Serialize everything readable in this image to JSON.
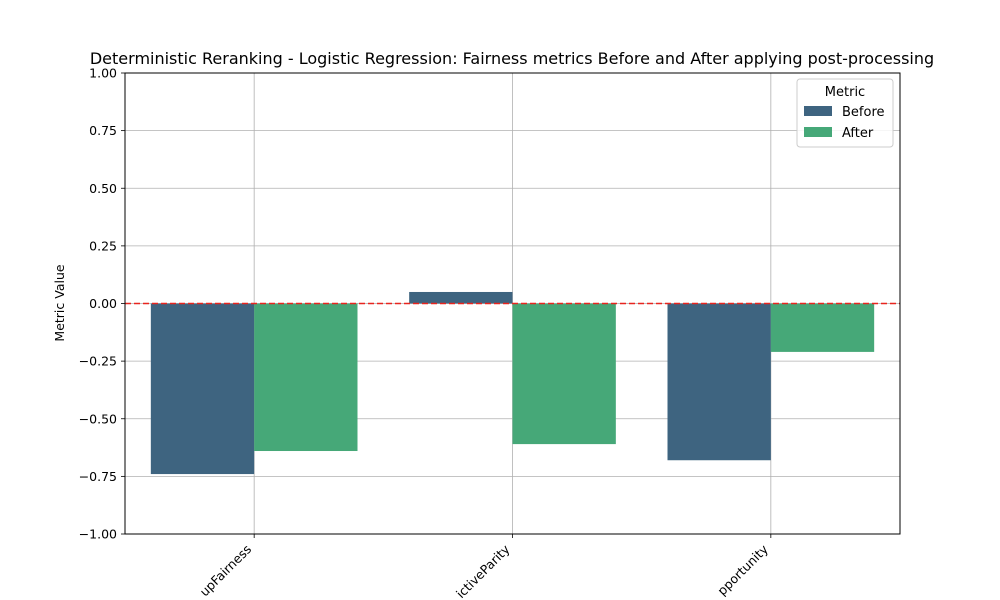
{
  "chart_data": {
    "type": "bar",
    "title": "Deterministic Reranking - Logistic Regression: Fairness metrics Before and After applying post-processing",
    "xlabel": "",
    "ylabel": "Metric Value",
    "ylim": [
      -1.0,
      1.0
    ],
    "yticks": [
      "−1.00",
      "−0.75",
      "−0.50",
      "−0.25",
      "0.00",
      "0.25",
      "0.50",
      "0.75",
      "1.00"
    ],
    "ytick_values": [
      -1.0,
      -0.75,
      -0.5,
      -0.25,
      0.0,
      0.25,
      0.5,
      0.75,
      1.0
    ],
    "categories": [
      "upFairness",
      "ictiveParity",
      "pportunity"
    ],
    "series": [
      {
        "name": "Before",
        "color": "#3e6480",
        "values": [
          -0.74,
          0.05,
          -0.68
        ]
      },
      {
        "name": "After",
        "color": "#46a878",
        "values": [
          -0.64,
          -0.61,
          -0.21
        ]
      }
    ],
    "reference_line": {
      "value": 0.0,
      "color": "#e8251f",
      "style": "dashed"
    },
    "grid": true,
    "legend": {
      "title": "Metric",
      "placement": "top-right"
    }
  }
}
